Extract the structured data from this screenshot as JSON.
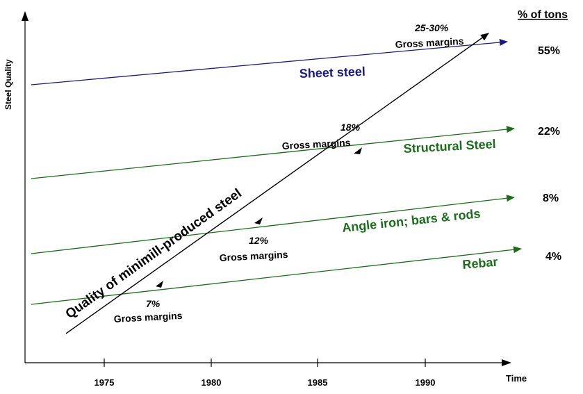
{
  "axes": {
    "y_title": "Steel Quality",
    "x_title": "Time",
    "x_ticks": [
      "1975",
      "1980",
      "1985",
      "1990"
    ],
    "share_header": "% of tons"
  },
  "segments": [
    {
      "label": "Sheet steel",
      "share": "55%",
      "color": "#1a1a7a"
    },
    {
      "label": "Structural Steel",
      "share": "22%",
      "color": "#1e6b1e"
    },
    {
      "label": "Angle iron; bars & rods",
      "share": "8%",
      "color": "#1e6b1e"
    },
    {
      "label": "Rebar",
      "share": "4%",
      "color": "#1e6b1e"
    }
  ],
  "minimill": {
    "label": "Quality of minimill-produced steel",
    "color": "#000000",
    "margins": [
      {
        "pct": "7%",
        "text": "Gross margins"
      },
      {
        "pct": "12%",
        "text": "Gross margins"
      },
      {
        "pct": "18%",
        "text": "Gross margins"
      },
      {
        "pct": "25-30%",
        "text": "Gross margins"
      }
    ]
  }
}
